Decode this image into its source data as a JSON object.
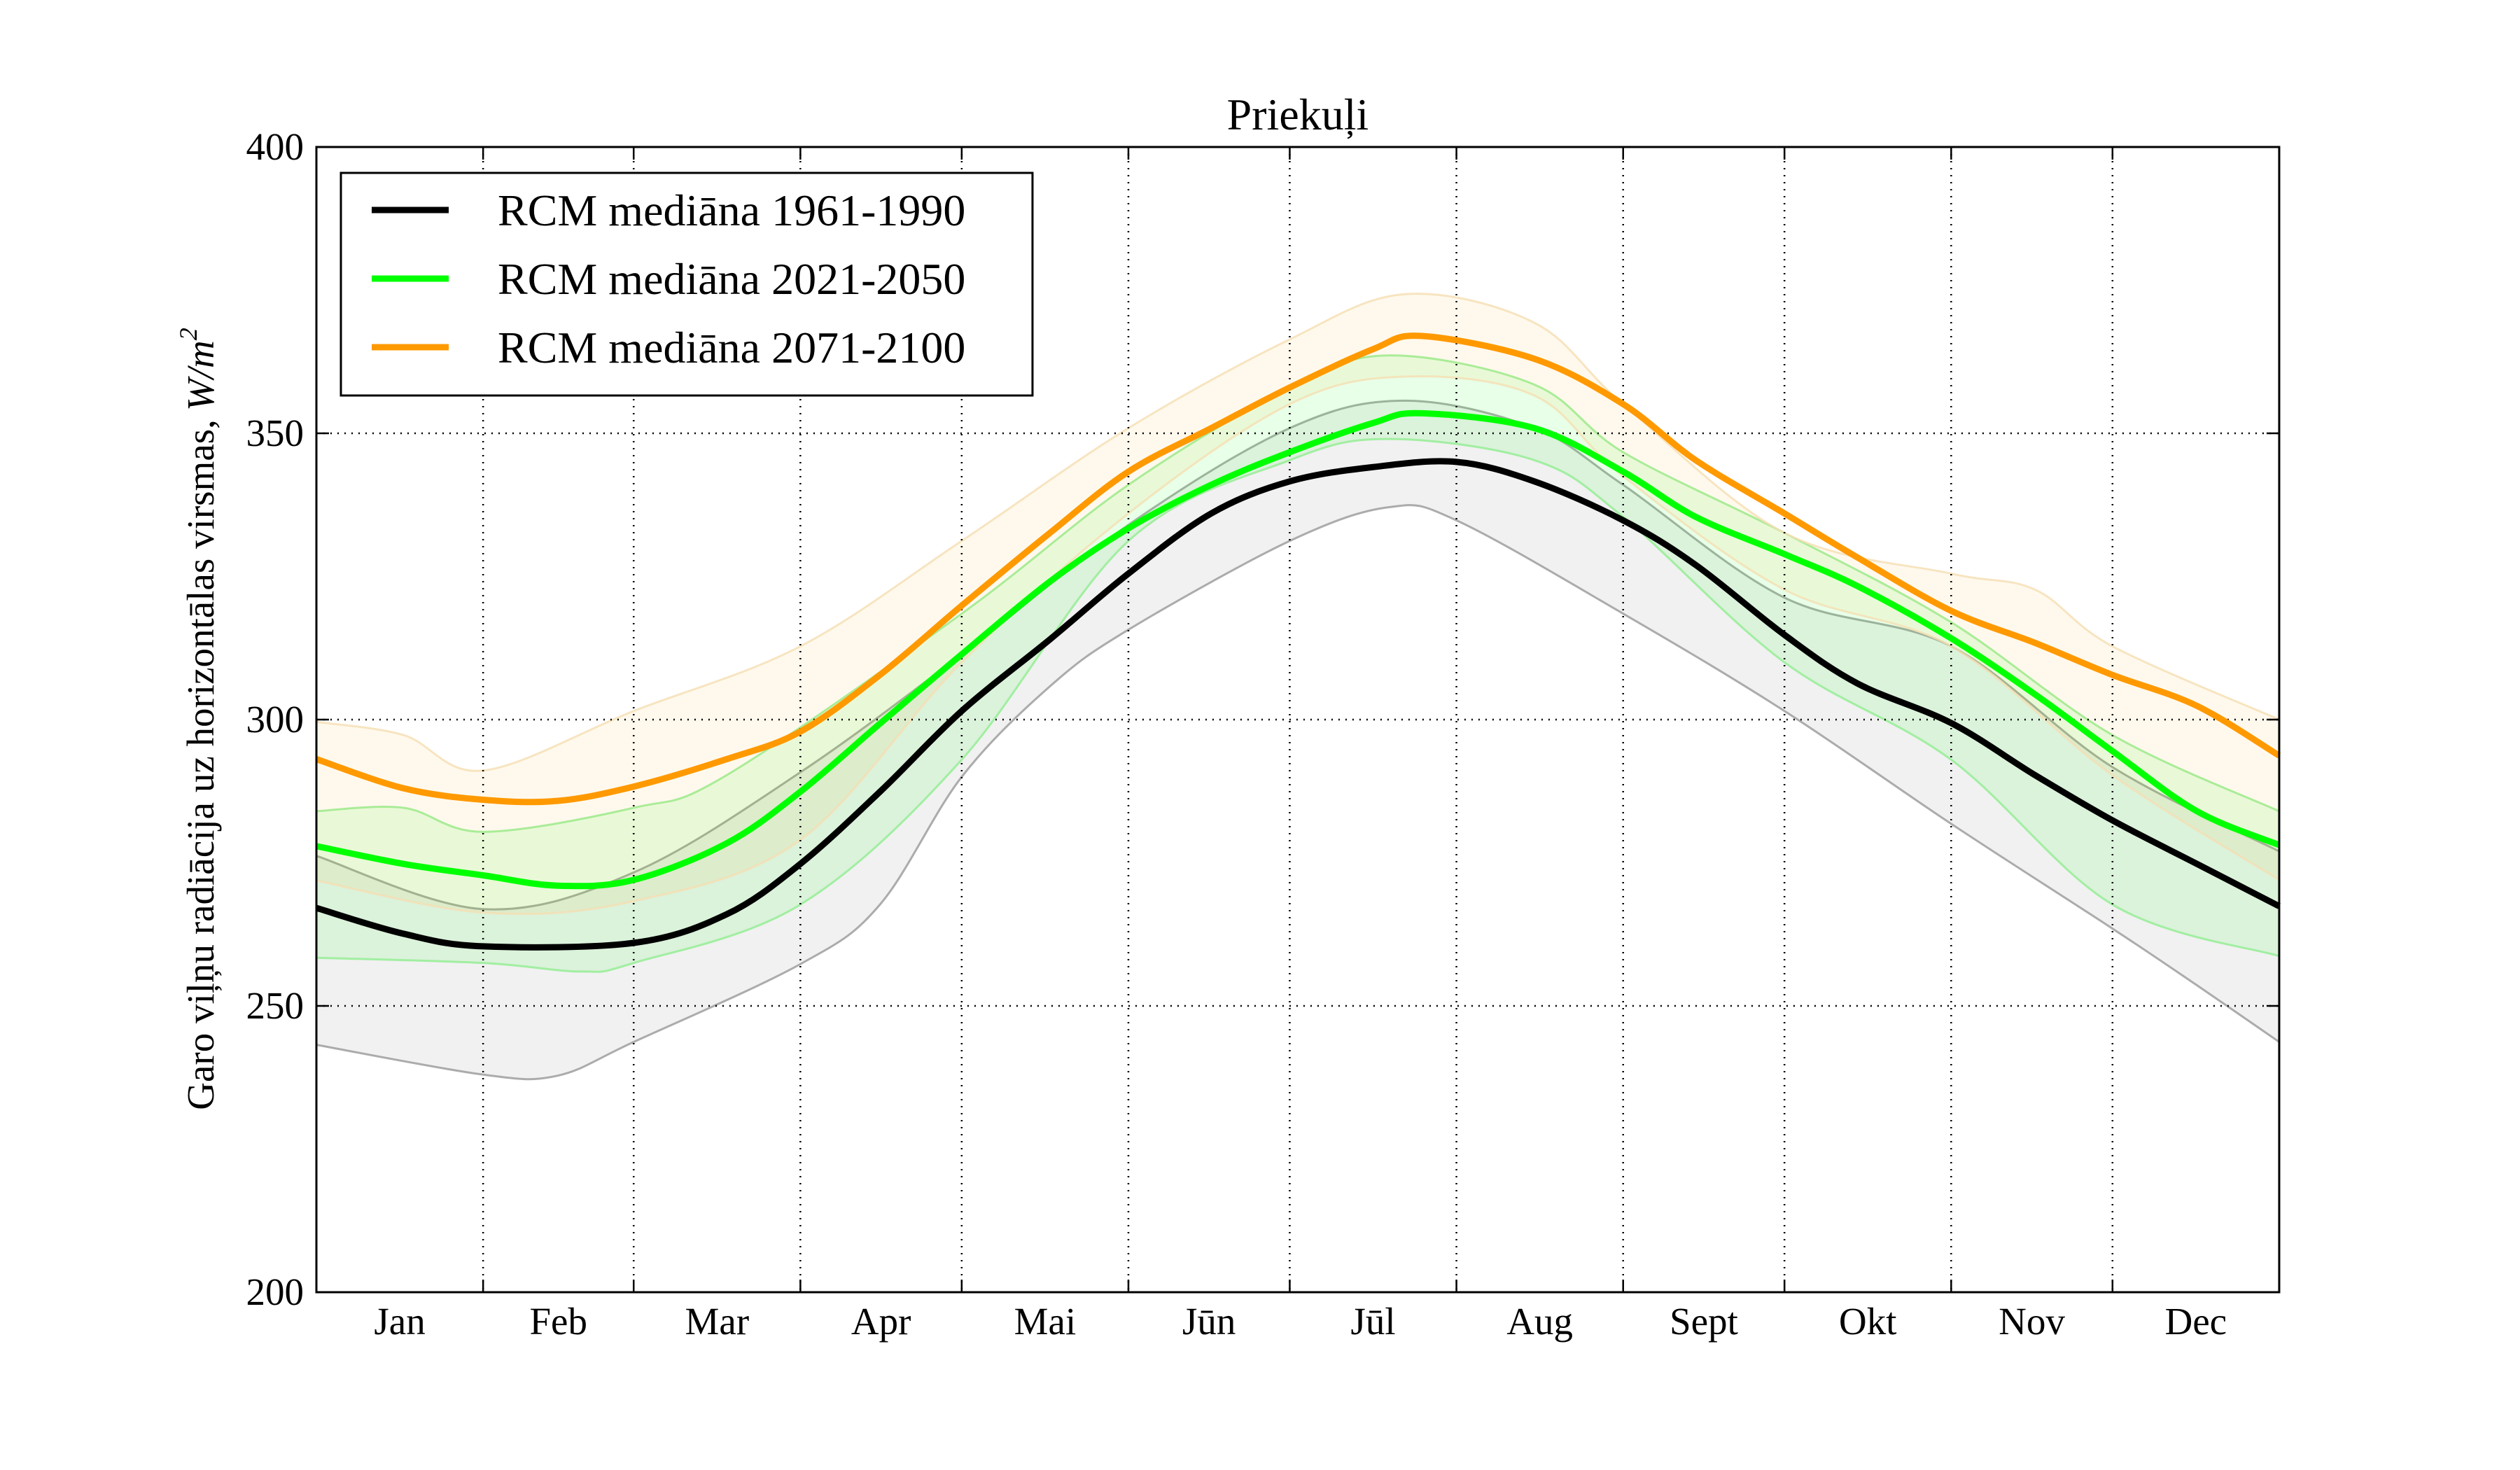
{
  "chart_data": {
    "type": "line",
    "title": "Priekuļi",
    "ylabel": "Garo viļņu radiācija uz horizontālas virsmas, W/m²",
    "ylabel_text": "Garo viļņu radiācija uz horizontālas virsmas,",
    "ylabel_unit": "W/m",
    "ylabel_unit_sup": "2",
    "xlabel": "",
    "ylim": [
      200,
      400
    ],
    "xlim_days": [
      0,
      365
    ],
    "yticks": [
      200,
      250,
      300,
      350,
      400
    ],
    "month_labels": [
      "Jan",
      "Feb",
      "Mar",
      "Apr",
      "Mai",
      "Jūn",
      "Jūl",
      "Aug",
      "Sept",
      "Okt",
      "Nov",
      "Dec"
    ],
    "month_boundaries_days": [
      31,
      59,
      90,
      120,
      151,
      181,
      212,
      243,
      273,
      304,
      334
    ],
    "grid": true,
    "legend_position": "top-left",
    "series": [
      {
        "name": "RCM mediāna 1961-1990",
        "color": "#000000",
        "band_fill": "#cccccc",
        "band_edge": "#999999",
        "median": [
          [
            0,
            267.1
          ],
          [
            16.2,
            262.6
          ],
          [
            31,
            260.4
          ],
          [
            59,
            261
          ],
          [
            76.3,
            266
          ],
          [
            90,
            274.8
          ],
          [
            104.8,
            287.4
          ],
          [
            120,
            301.5
          ],
          [
            136.4,
            314
          ],
          [
            151,
            325.5
          ],
          [
            166.4,
            336
          ],
          [
            181,
            341.6
          ],
          [
            196.5,
            344.1
          ],
          [
            212,
            345
          ],
          [
            226.5,
            341.6
          ],
          [
            243,
            334.8
          ],
          [
            256.5,
            327
          ],
          [
            273,
            314.8
          ],
          [
            286.6,
            306.3
          ],
          [
            304,
            299.4
          ],
          [
            319.6,
            290.3
          ],
          [
            334,
            282.4
          ],
          [
            349.7,
            274.8
          ],
          [
            365,
            267.4
          ]
        ],
        "max": [
          [
            0,
            276.2
          ],
          [
            31,
            266.9
          ],
          [
            59,
            273.3
          ],
          [
            90,
            290.8
          ],
          [
            120,
            311.4
          ],
          [
            151,
            334
          ],
          [
            181,
            350.9
          ],
          [
            202.5,
            355.7
          ],
          [
            226.5,
            350.9
          ],
          [
            243,
            341
          ],
          [
            273,
            321.3
          ],
          [
            304,
            312.8
          ],
          [
            334,
            291.7
          ],
          [
            365,
            277
          ]
        ],
        "min": [
          [
            0,
            243.2
          ],
          [
            31,
            238
          ],
          [
            44.8,
            237.8
          ],
          [
            59,
            243.7
          ],
          [
            90,
            257.3
          ],
          [
            104.8,
            267.7
          ],
          [
            120,
            290
          ],
          [
            136.4,
            305.8
          ],
          [
            151,
            315.7
          ],
          [
            181,
            331.2
          ],
          [
            199.5,
            337.1
          ],
          [
            212,
            334.8
          ],
          [
            243,
            318.5
          ],
          [
            273,
            301.5
          ],
          [
            304,
            281.8
          ],
          [
            334,
            263.5
          ],
          [
            349.7,
            253.6
          ],
          [
            365,
            243.7
          ]
        ]
      },
      {
        "name": "RCM mediāna 2021-2050",
        "color": "#00ff00",
        "band_fill": "#00ff00",
        "band_edge": "#90ee90",
        "median": [
          [
            0,
            277.9
          ],
          [
            16.2,
            274.8
          ],
          [
            31,
            272.8
          ],
          [
            44.8,
            271
          ],
          [
            59,
            272
          ],
          [
            76.3,
            278.4
          ],
          [
            90,
            287.4
          ],
          [
            104.8,
            299.3
          ],
          [
            120,
            311.4
          ],
          [
            136.4,
            324.1
          ],
          [
            151,
            333.4
          ],
          [
            166.4,
            341
          ],
          [
            181,
            346.7
          ],
          [
            196.5,
            351.8
          ],
          [
            205.5,
            353.5
          ],
          [
            226.5,
            350.9
          ],
          [
            243,
            343.3
          ],
          [
            256.5,
            335.4
          ],
          [
            273,
            328.9
          ],
          [
            286.6,
            323.3
          ],
          [
            304,
            314.2
          ],
          [
            319.6,
            304.4
          ],
          [
            334,
            294.5
          ],
          [
            349.7,
            284
          ],
          [
            365,
            278.1
          ]
        ],
        "max": [
          [
            0,
            284
          ],
          [
            16.2,
            284.6
          ],
          [
            31,
            280.4
          ],
          [
            59,
            284.6
          ],
          [
            76.3,
            290.3
          ],
          [
            120,
            318.5
          ],
          [
            151,
            341
          ],
          [
            181,
            358
          ],
          [
            199.5,
            363.6
          ],
          [
            226.5,
            358.5
          ],
          [
            243,
            346.7
          ],
          [
            273,
            332.6
          ],
          [
            304,
            317
          ],
          [
            334,
            297.3
          ],
          [
            365,
            284
          ]
        ],
        "min": [
          [
            0,
            258.4
          ],
          [
            31,
            257.5
          ],
          [
            49.3,
            256
          ],
          [
            59,
            257.5
          ],
          [
            90,
            267.7
          ],
          [
            120,
            293
          ],
          [
            151,
            331.2
          ],
          [
            181,
            345.3
          ],
          [
            199.5,
            349
          ],
          [
            226.5,
            345.3
          ],
          [
            243,
            335.4
          ],
          [
            273,
            310
          ],
          [
            304,
            293
          ],
          [
            334,
            267.7
          ],
          [
            365,
            258.7
          ]
        ]
      },
      {
        "name": "RCM mediāna 2071-2100",
        "color": "#ff9900",
        "band_fill": "#ffa500",
        "band_edge": "#f5deb3",
        "median": [
          [
            0,
            293.1
          ],
          [
            16.2,
            288
          ],
          [
            31,
            286
          ],
          [
            44.8,
            285.8
          ],
          [
            59,
            288.3
          ],
          [
            76.3,
            293.1
          ],
          [
            90,
            297.9
          ],
          [
            104.8,
            307.8
          ],
          [
            120,
            319.9
          ],
          [
            136.4,
            332.6
          ],
          [
            151,
            343.3
          ],
          [
            166.4,
            350.9
          ],
          [
            181,
            358
          ],
          [
            196.5,
            364.7
          ],
          [
            205.5,
            367
          ],
          [
            226.5,
            363
          ],
          [
            243,
            355.1
          ],
          [
            256.5,
            345.3
          ],
          [
            273,
            336
          ],
          [
            286.6,
            328.3
          ],
          [
            304,
            319
          ],
          [
            319.6,
            313.4
          ],
          [
            334,
            307.8
          ],
          [
            349.7,
            302.4
          ],
          [
            365,
            293.7
          ]
        ],
        "max": [
          [
            0,
            299.6
          ],
          [
            16.2,
            297.3
          ],
          [
            31,
            291.1
          ],
          [
            59,
            301.5
          ],
          [
            90,
            312.8
          ],
          [
            120,
            331.2
          ],
          [
            151,
            350.9
          ],
          [
            181,
            366.4
          ],
          [
            202.5,
            374.3
          ],
          [
            226.5,
            369.3
          ],
          [
            243,
            355.1
          ],
          [
            273,
            332.6
          ],
          [
            304,
            325.5
          ],
          [
            319.6,
            322.7
          ],
          [
            334,
            312.8
          ],
          [
            365,
            300
          ]
        ],
        "min": [
          [
            0,
            271.9
          ],
          [
            31,
            266.3
          ],
          [
            59,
            268.3
          ],
          [
            90,
            279
          ],
          [
            120,
            310
          ],
          [
            151,
            336
          ],
          [
            181,
            355.1
          ],
          [
            202.5,
            359.9
          ],
          [
            226.5,
            356.6
          ],
          [
            243,
            342.5
          ],
          [
            273,
            322.7
          ],
          [
            304,
            312.8
          ],
          [
            334,
            290.3
          ],
          [
            365,
            272
          ]
        ]
      }
    ]
  }
}
